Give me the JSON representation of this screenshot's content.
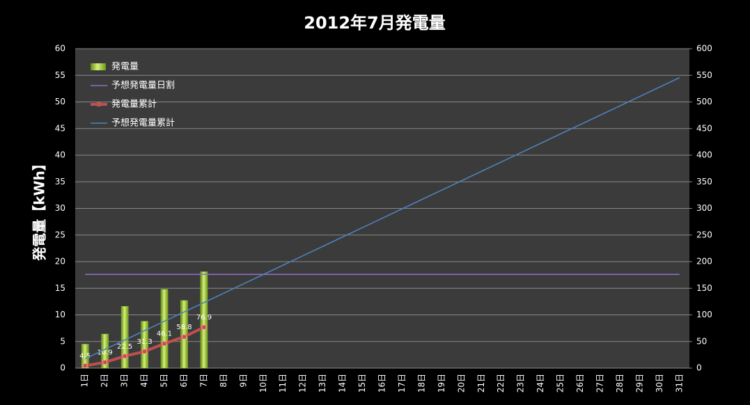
{
  "chart_data": {
    "type": "bar",
    "title": "2012年7月発電量",
    "y_label": "発電量【kWh】",
    "categories": [
      "1日",
      "2日",
      "3日",
      "4日",
      "5日",
      "6日",
      "7日",
      "8日",
      "9日",
      "10日",
      "11日",
      "12日",
      "13日",
      "14日",
      "15日",
      "16日",
      "17日",
      "18日",
      "19日",
      "20日",
      "21日",
      "22日",
      "23日",
      "24日",
      "25日",
      "26日",
      "27日",
      "28日",
      "29日",
      "30日",
      "31日"
    ],
    "series": [
      {
        "name": "発電量",
        "type": "bar",
        "color": "#9acd32",
        "values": [
          4.5,
          6.4,
          11.6,
          8.8,
          14.8,
          12.7,
          18.1,
          null,
          null,
          null,
          null,
          null,
          null,
          null,
          null,
          null,
          null,
          null,
          null,
          null,
          null,
          null,
          null,
          null,
          null,
          null,
          null,
          null,
          null,
          null,
          null
        ]
      },
      {
        "name": "予想発電量日割",
        "type": "line",
        "color": "#8e6cc9",
        "values": [
          17.6,
          17.6,
          17.6,
          17.6,
          17.6,
          17.6,
          17.6,
          17.6,
          17.6,
          17.6,
          17.6,
          17.6,
          17.6,
          17.6,
          17.6,
          17.6,
          17.6,
          17.6,
          17.6,
          17.6,
          17.6,
          17.6,
          17.6,
          17.6,
          17.6,
          17.6,
          17.6,
          17.6,
          17.6,
          17.6,
          17.6
        ]
      },
      {
        "name": "発電量累計",
        "type": "line",
        "axis": "y2",
        "color": "#c0504d",
        "markers": true,
        "data_labels": true,
        "values": [
          4.5,
          10.9,
          22.5,
          31.3,
          46.1,
          58.8,
          76.9,
          null,
          null,
          null,
          null,
          null,
          null,
          null,
          null,
          null,
          null,
          null,
          null,
          null,
          null,
          null,
          null,
          null,
          null,
          null,
          null,
          null,
          null,
          null,
          null
        ]
      },
      {
        "name": "予想発電量累計",
        "type": "line",
        "axis": "y2",
        "color": "#4f81bd",
        "values": [
          17.6,
          35.2,
          52.8,
          70.4,
          88,
          105.6,
          123.2,
          140.8,
          158.4,
          176,
          193.6,
          211.2,
          228.8,
          246.4,
          264,
          281.6,
          299.2,
          316.8,
          334.4,
          352,
          369.6,
          387.2,
          404.8,
          422.4,
          440,
          457.6,
          475.2,
          492.8,
          510.4,
          528,
          545.6
        ]
      }
    ],
    "ylim": [
      0,
      60
    ],
    "yticks": [
      0,
      5,
      10,
      15,
      20,
      25,
      30,
      35,
      40,
      45,
      50,
      55,
      60
    ],
    "y2lim": [
      0,
      600
    ],
    "y2ticks": [
      0,
      50,
      100,
      150,
      200,
      250,
      300,
      350,
      400,
      450,
      500,
      550,
      600
    ],
    "grid": true,
    "legend": "top-left"
  }
}
